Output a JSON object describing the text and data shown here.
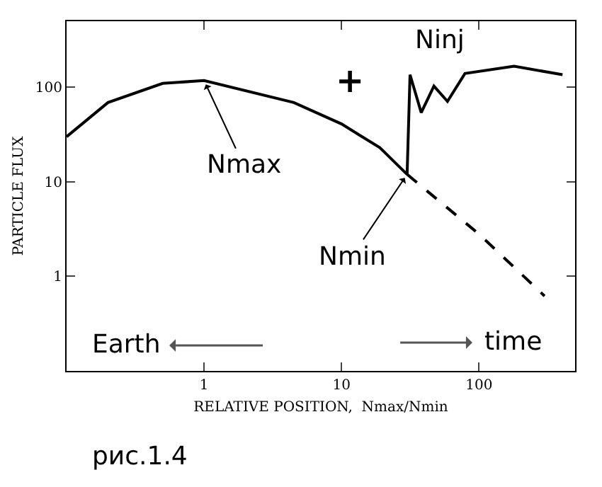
{
  "chart_data": {
    "type": "line",
    "xlabel": "RELATIVE POSITION,  Nmax/Nmin",
    "ylabel": "PARTICLE FLUX",
    "log": "xy",
    "grid": false,
    "marker": "none",
    "xlim": [
      0.1,
      500
    ],
    "xticks": [
      1,
      10,
      100
    ],
    "ylim": [
      0.1,
      500
    ],
    "yticks": [
      1,
      10,
      100
    ],
    "series": [
      {
        "color": "#000000",
        "line_style": "solid",
        "x": [
          0.1,
          0.2,
          0.5,
          1,
          4.5,
          10,
          19,
          30,
          31.5,
          38,
          47,
          59,
          79,
          180,
          405
        ],
        "values": [
          30,
          69,
          110,
          118,
          69,
          41,
          23,
          12,
          136,
          54,
          103,
          71,
          140,
          167,
          136
        ]
      },
      {
        "color": "#000000",
        "line_style": "dashed",
        "x": [
          30,
          100,
          300
        ],
        "values": [
          12,
          2.8,
          0.62
        ]
      }
    ],
    "annotations": [
      {
        "text": "Nmax",
        "x": 1,
        "y": 118
      },
      {
        "text": "Nmin",
        "x": 30,
        "y": 12
      },
      "Ninj",
      "+",
      "Earth",
      "time",
      "рис.1.4"
    ]
  }
}
